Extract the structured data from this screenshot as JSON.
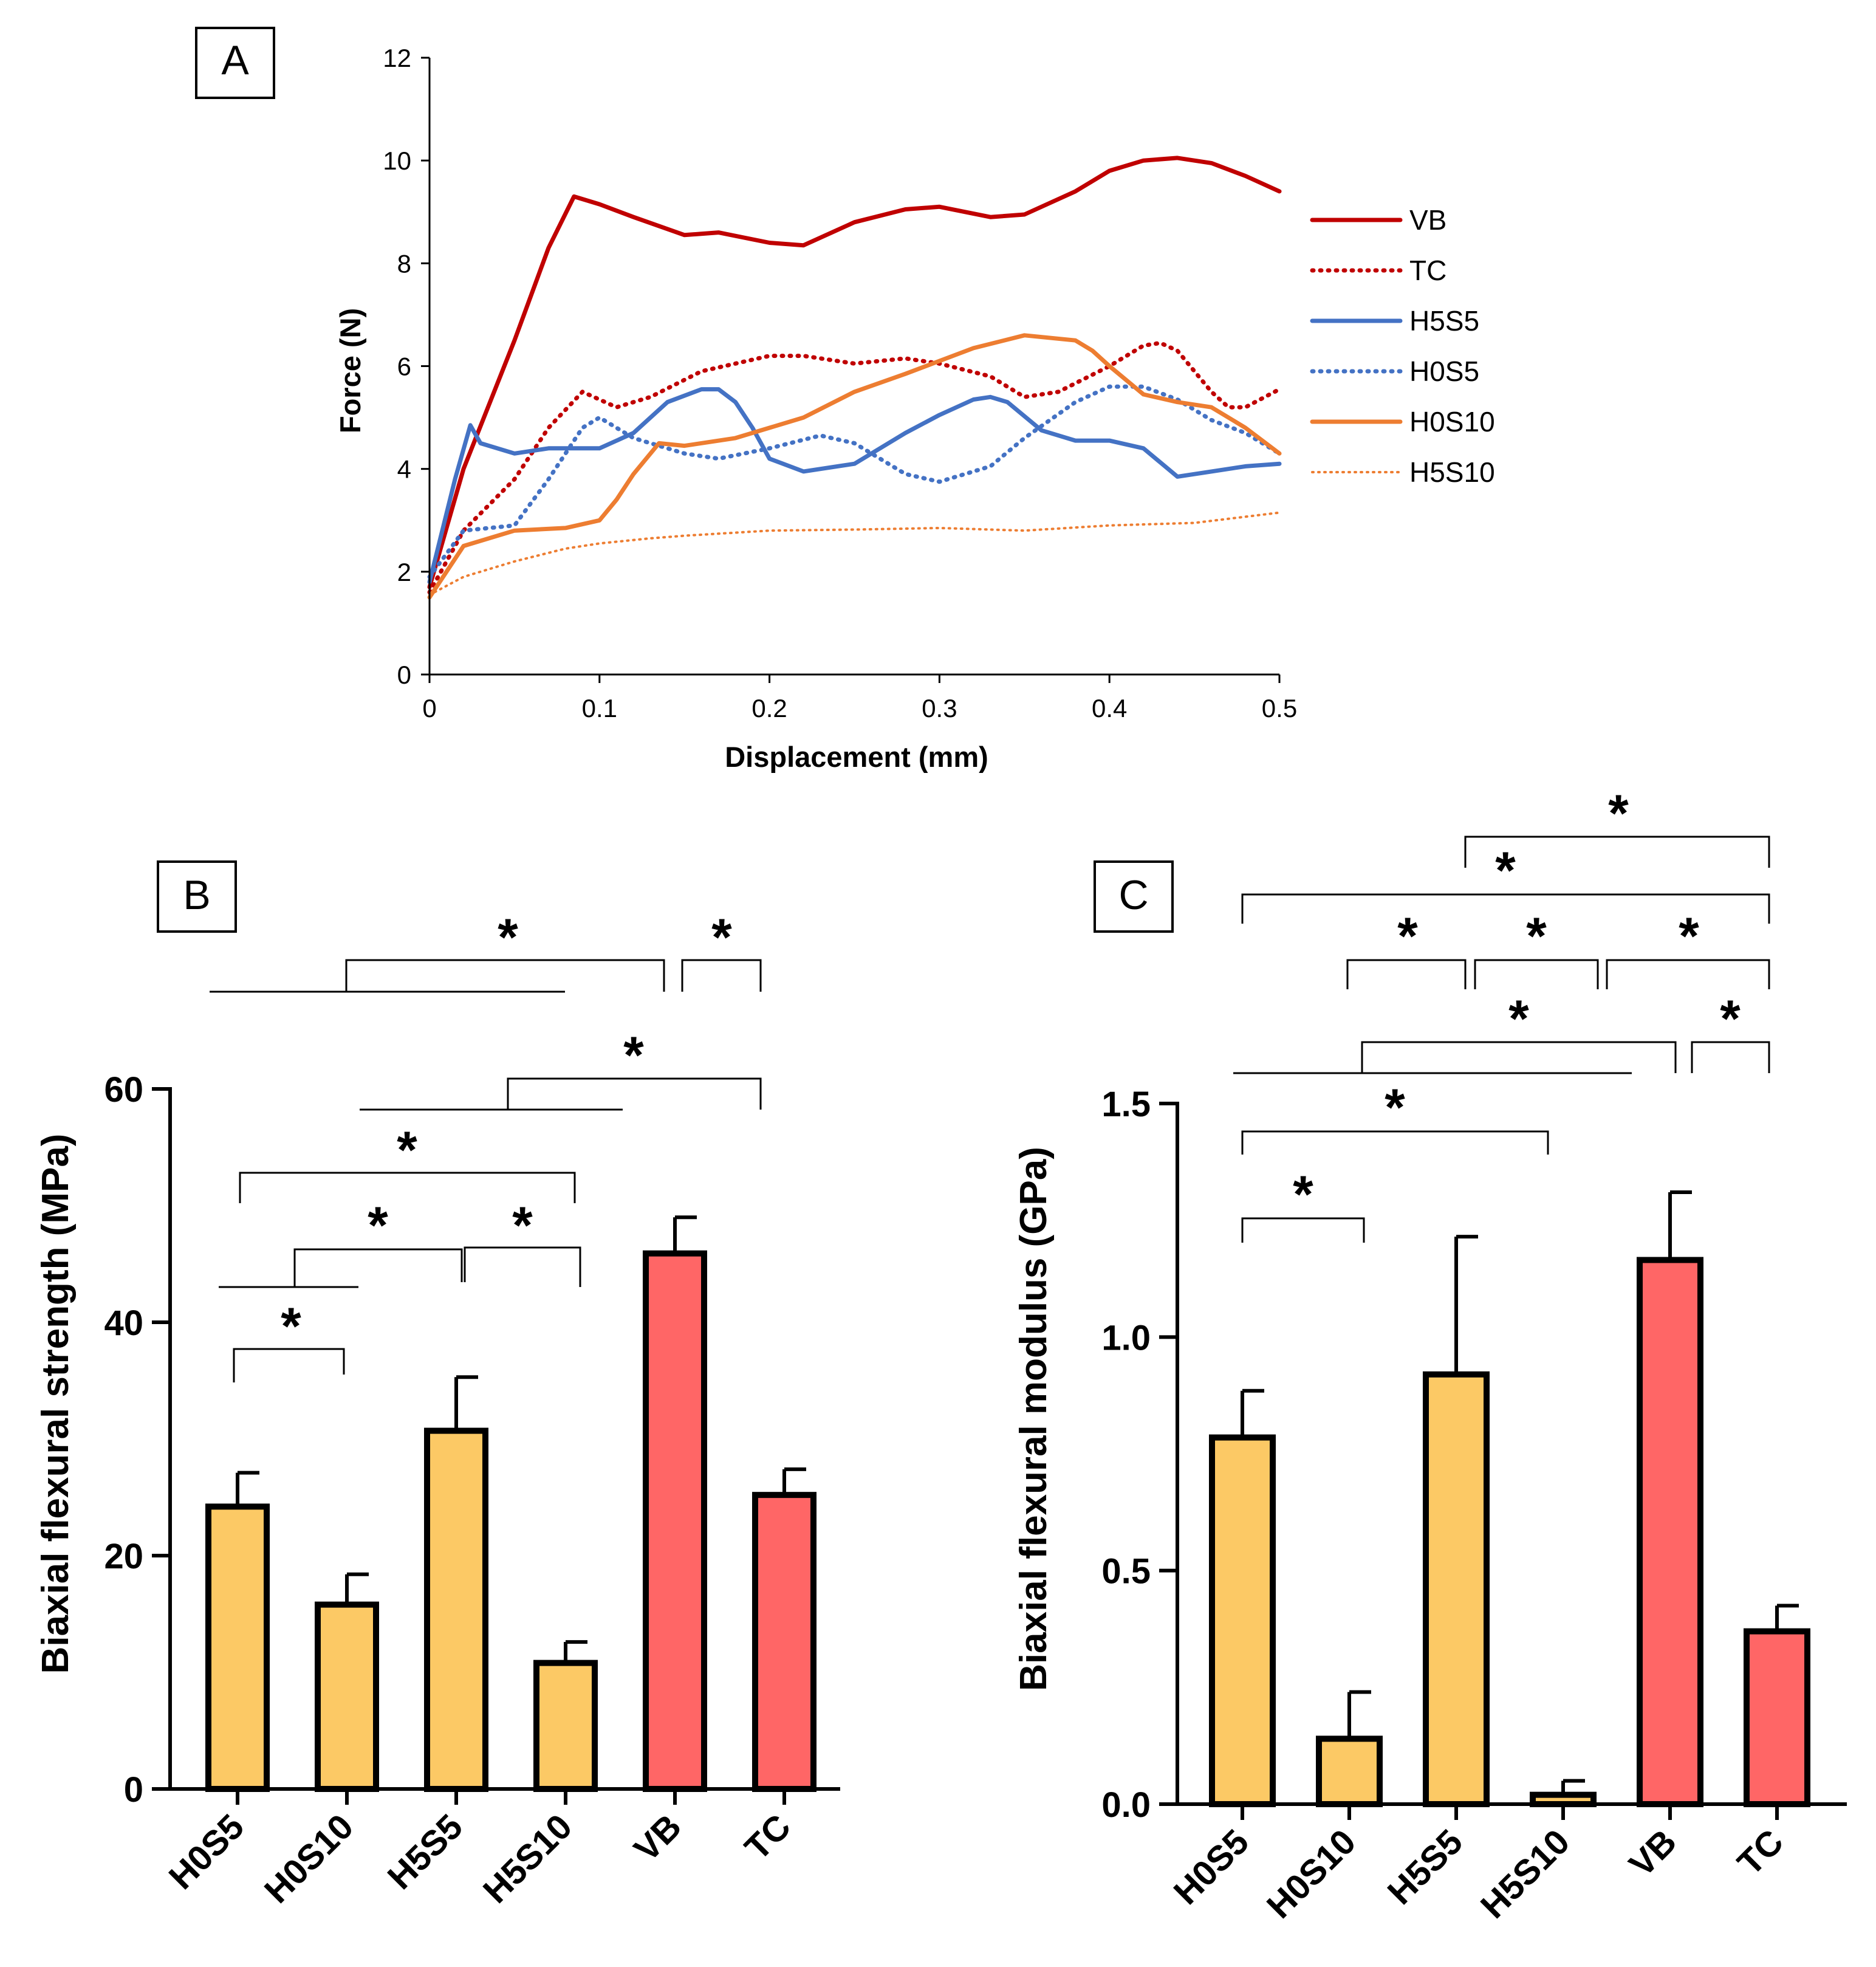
{
  "colors": {
    "red_dark": "#c00000",
    "blue": "#4472c4",
    "orange": "#ed7d31",
    "bar_yellow": "#fcc965",
    "bar_red": "#ff6666",
    "ink": "#000000"
  },
  "panel_labels": {
    "a": "A",
    "b": "B",
    "c": "C"
  },
  "significance_marker": "*",
  "chart_data": [
    {
      "id": "A",
      "type": "line",
      "title": "",
      "xlabel": "Displacement (mm)",
      "ylabel": "Force (N)",
      "xlim": [
        0,
        0.5
      ],
      "ylim": [
        0,
        12
      ],
      "xticks": [
        0,
        0.1,
        0.2,
        0.3,
        0.4,
        0.5
      ],
      "xtick_labels": [
        "0",
        "0.1",
        "0.2",
        "0.3",
        "0.4",
        "0.5"
      ],
      "yticks": [
        0,
        2,
        4,
        6,
        8,
        10,
        12
      ],
      "ytick_labels": [
        "0",
        "2",
        "4",
        "6",
        "8",
        "10",
        "12"
      ],
      "legend_position": "right",
      "series": [
        {
          "name": "VB",
          "color": "#c00000",
          "style": "solid",
          "weight": "bold",
          "x": [
            0,
            0.02,
            0.05,
            0.07,
            0.085,
            0.1,
            0.12,
            0.15,
            0.17,
            0.2,
            0.22,
            0.25,
            0.28,
            0.3,
            0.33,
            0.35,
            0.38,
            0.4,
            0.42,
            0.44,
            0.46,
            0.48,
            0.5
          ],
          "y": [
            1.7,
            4.0,
            6.5,
            8.3,
            9.3,
            9.15,
            8.9,
            8.55,
            8.6,
            8.4,
            8.35,
            8.8,
            9.05,
            9.1,
            8.9,
            8.95,
            9.4,
            9.8,
            10.0,
            10.05,
            9.95,
            9.7,
            9.4
          ]
        },
        {
          "name": "TC",
          "color": "#c00000",
          "style": "dotted",
          "weight": "bold",
          "x": [
            0,
            0.02,
            0.05,
            0.07,
            0.09,
            0.11,
            0.13,
            0.16,
            0.2,
            0.22,
            0.25,
            0.28,
            0.3,
            0.33,
            0.35,
            0.37,
            0.4,
            0.42,
            0.43,
            0.44,
            0.45,
            0.46,
            0.47,
            0.48,
            0.5
          ],
          "y": [
            1.6,
            2.8,
            3.8,
            4.8,
            5.5,
            5.2,
            5.4,
            5.9,
            6.2,
            6.2,
            6.05,
            6.15,
            6.05,
            5.8,
            5.4,
            5.5,
            6.0,
            6.4,
            6.45,
            6.3,
            5.9,
            5.5,
            5.2,
            5.2,
            5.55
          ]
        },
        {
          "name": "H5S5",
          "color": "#4472c4",
          "style": "solid",
          "weight": "bold",
          "x": [
            0,
            0.015,
            0.024,
            0.03,
            0.05,
            0.07,
            0.1,
            0.12,
            0.14,
            0.16,
            0.17,
            0.18,
            0.19,
            0.2,
            0.22,
            0.25,
            0.28,
            0.3,
            0.32,
            0.33,
            0.34,
            0.36,
            0.38,
            0.4,
            0.42,
            0.44,
            0.46,
            0.48,
            0.5
          ],
          "y": [
            1.8,
            3.8,
            4.85,
            4.5,
            4.3,
            4.4,
            4.4,
            4.7,
            5.3,
            5.55,
            5.55,
            5.3,
            4.8,
            4.2,
            3.95,
            4.1,
            4.7,
            5.05,
            5.35,
            5.4,
            5.3,
            4.75,
            4.55,
            4.55,
            4.4,
            3.85,
            3.95,
            4.05,
            4.1
          ]
        },
        {
          "name": "H0S5",
          "color": "#4472c4",
          "style": "dotted",
          "weight": "bold",
          "x": [
            0,
            0.02,
            0.05,
            0.07,
            0.09,
            0.1,
            0.12,
            0.15,
            0.17,
            0.2,
            0.23,
            0.25,
            0.28,
            0.3,
            0.33,
            0.35,
            0.38,
            0.4,
            0.42,
            0.44,
            0.46,
            0.48,
            0.5
          ],
          "y": [
            1.9,
            2.8,
            2.9,
            3.8,
            4.8,
            5.0,
            4.6,
            4.3,
            4.2,
            4.4,
            4.65,
            4.5,
            3.9,
            3.75,
            4.05,
            4.6,
            5.3,
            5.6,
            5.6,
            5.35,
            4.95,
            4.7,
            4.3
          ]
        },
        {
          "name": "H0S10",
          "color": "#ed7d31",
          "style": "solid",
          "weight": "bold",
          "x": [
            0,
            0.02,
            0.05,
            0.08,
            0.1,
            0.11,
            0.12,
            0.135,
            0.15,
            0.18,
            0.2,
            0.22,
            0.25,
            0.28,
            0.3,
            0.32,
            0.35,
            0.38,
            0.39,
            0.4,
            0.42,
            0.44,
            0.46,
            0.48,
            0.5
          ],
          "y": [
            1.5,
            2.5,
            2.8,
            2.85,
            3.0,
            3.4,
            3.9,
            4.5,
            4.45,
            4.6,
            4.8,
            5.0,
            5.5,
            5.85,
            6.1,
            6.35,
            6.6,
            6.5,
            6.3,
            6.0,
            5.45,
            5.3,
            5.2,
            4.8,
            4.3
          ]
        },
        {
          "name": "H5S10",
          "color": "#ed7d31",
          "style": "dotted",
          "weight": "normal",
          "x": [
            0,
            0.02,
            0.05,
            0.08,
            0.1,
            0.13,
            0.15,
            0.2,
            0.25,
            0.3,
            0.35,
            0.4,
            0.45,
            0.5
          ],
          "y": [
            1.55,
            1.9,
            2.2,
            2.45,
            2.55,
            2.65,
            2.7,
            2.8,
            2.82,
            2.85,
            2.8,
            2.9,
            2.95,
            3.15
          ]
        }
      ]
    },
    {
      "id": "B",
      "type": "bar",
      "title": "",
      "xlabel": "",
      "ylabel": "Biaxial flexural strength  (MPa)",
      "categories": [
        "H0S5",
        "H0S10",
        "H5S5",
        "H5S10",
        "VB",
        "TC"
      ],
      "values": [
        24.2,
        15.8,
        30.7,
        10.8,
        45.9,
        25.2
      ],
      "errors": [
        2.9,
        2.6,
        4.6,
        1.8,
        3.1,
        2.2
      ],
      "bar_colors": [
        "#fcc965",
        "#fcc965",
        "#fcc965",
        "#fcc965",
        "#ff6666",
        "#ff6666"
      ],
      "ylim": [
        0,
        60
      ],
      "yticks": [
        0,
        20,
        40,
        60
      ],
      "ytick_labels": [
        "0",
        "20",
        "40",
        "60"
      ],
      "significance": [
        {
          "from": "H0S5",
          "to": "H0S10",
          "label": "*"
        },
        {
          "from": "H0S5",
          "to": "H5S10",
          "label": "*"
        },
        {
          "from": "H0S5 & H0S10",
          "to": "H5S5",
          "label": "*"
        },
        {
          "from": "H5S5",
          "to": "H5S10",
          "label": "*"
        },
        {
          "from": "H5S5 & H5S10",
          "to": "TC",
          "label": "*"
        },
        {
          "from": "H0S5 to H5S10",
          "to": "VB",
          "label": "*"
        },
        {
          "from": "VB",
          "to": "TC",
          "label": "*"
        }
      ]
    },
    {
      "id": "C",
      "type": "bar",
      "title": "",
      "xlabel": "",
      "ylabel": "Biaxial flexural modulus  (GPa)",
      "categories": [
        "H0S5",
        "H0S10",
        "H5S5",
        "H5S10",
        "VB",
        "TC"
      ],
      "values": [
        0.785,
        0.14,
        0.92,
        0.02,
        1.165,
        0.37
      ],
      "errors": [
        0.1,
        0.1,
        0.295,
        0.03,
        0.145,
        0.055
      ],
      "bar_colors": [
        "#fcc965",
        "#fcc965",
        "#fcc965",
        "#fcc965",
        "#ff6666",
        "#ff6666"
      ],
      "ylim": [
        0,
        1.5
      ],
      "yticks": [
        0,
        0.5,
        1.0,
        1.5
      ],
      "ytick_labels": [
        "0.0",
        "0.5",
        "1.0",
        "1.5"
      ],
      "significance": [
        {
          "from": "H0S5",
          "to": "H0S10",
          "label": "*"
        },
        {
          "from": "H0S5",
          "to": "H5S10",
          "label": "*"
        },
        {
          "from": "H0S5 to H5S10",
          "to": "VB",
          "label": "*"
        },
        {
          "from": "VB",
          "to": "TC",
          "label": "*"
        },
        {
          "from": "H0S10",
          "to": "H5S5",
          "label": "*"
        },
        {
          "from": "H5S5",
          "to": "H5S10",
          "label": "*"
        },
        {
          "from": "H5S10",
          "to": "TC",
          "label": "*"
        },
        {
          "from": "H0S5",
          "to": "TC",
          "label": "*"
        },
        {
          "from": "H5S5",
          "to": "TC",
          "label": "*"
        }
      ]
    }
  ]
}
